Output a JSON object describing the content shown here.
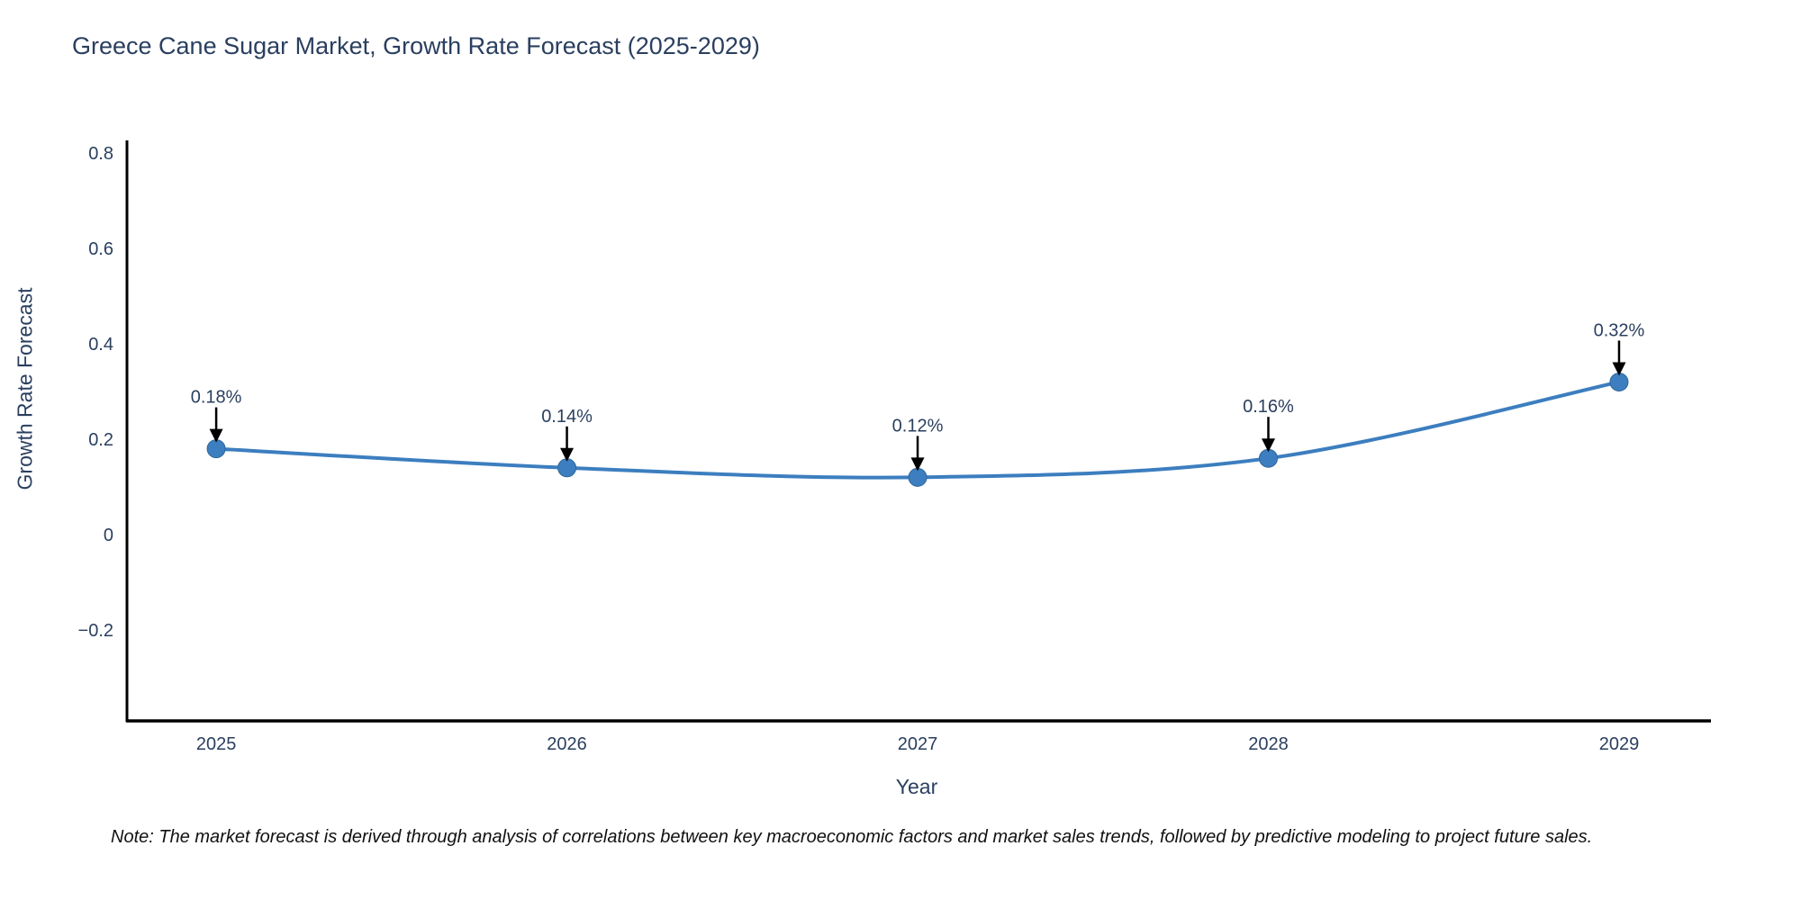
{
  "chart_data": {
    "type": "line",
    "title": "Greece Cane Sugar Market, Growth Rate Forecast (2025-2029)",
    "xlabel": "Year",
    "ylabel": "Growth Rate Forecast",
    "x": [
      2025,
      2026,
      2027,
      2028,
      2029
    ],
    "x_tick_labels": [
      "2025",
      "2026",
      "2027",
      "2028",
      "2029"
    ],
    "series": [
      {
        "name": "Growth Rate Forecast",
        "values": [
          0.18,
          0.14,
          0.12,
          0.16,
          0.32
        ]
      }
    ],
    "point_labels": [
      "0.18%",
      "0.14%",
      "0.12%",
      "0.16%",
      "0.32%"
    ],
    "y_ticks": [
      0.8,
      0.6,
      0.4,
      0.2,
      0,
      -0.2
    ],
    "y_tick_labels": [
      "0.8",
      "0.6",
      "0.4",
      "0.2",
      "0",
      "−0.2"
    ],
    "xlim": [
      2024.743,
      2029.262
    ],
    "ylim": [
      -0.389,
      0.823
    ],
    "grid": false,
    "legend": "none",
    "line_shape": "spline",
    "colors": {
      "line": "#3c7ebf",
      "marker": "#3c7ebf",
      "marker_edge": "#30679c",
      "axis": "#000000",
      "text": "#2a3f5f",
      "arrow": "#000000",
      "note": "#111111"
    },
    "note": "Note: The market forecast is derived through analysis of correlations between key macroeconomic factors and market sales trends, followed by predictive modeling to project future sales."
  }
}
